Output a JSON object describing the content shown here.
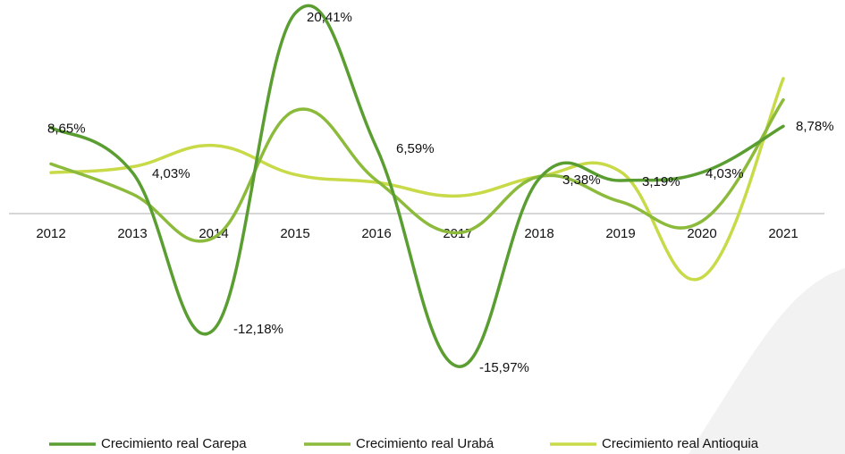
{
  "chart_data": {
    "type": "line",
    "categories": [
      "2012",
      "2013",
      "2014",
      "2015",
      "2016",
      "2017",
      "2018",
      "2019",
      "2020",
      "2021"
    ],
    "series": [
      {
        "name": "Crecimiento real Carepa",
        "color": "#5a9e32",
        "values": [
          8.65,
          4.03,
          -12.18,
          20.41,
          6.59,
          -15.97,
          3.38,
          3.19,
          4.03,
          8.78
        ],
        "value_labels": [
          "8,65%",
          "4,03%",
          "-12,18%",
          "20,41%",
          "6,59%",
          "-15,97%",
          "3,38%",
          "3,19%",
          "4,03%",
          "8,78%"
        ]
      },
      {
        "name": "Crecimiento real Urabá",
        "color": "#8cbb3c",
        "values": [
          4.9,
          1.8,
          -2.7,
          10.4,
          3.2,
          -2.2,
          3.6,
          1.0,
          -1.0,
          11.5
        ]
      },
      {
        "name": "Crecimiento real Antioquia",
        "color": "#c8da48",
        "values": [
          4.0,
          4.6,
          6.8,
          3.8,
          3.0,
          1.6,
          3.6,
          4.1,
          -6.8,
          13.7
        ]
      }
    ],
    "legend": "bottom"
  }
}
